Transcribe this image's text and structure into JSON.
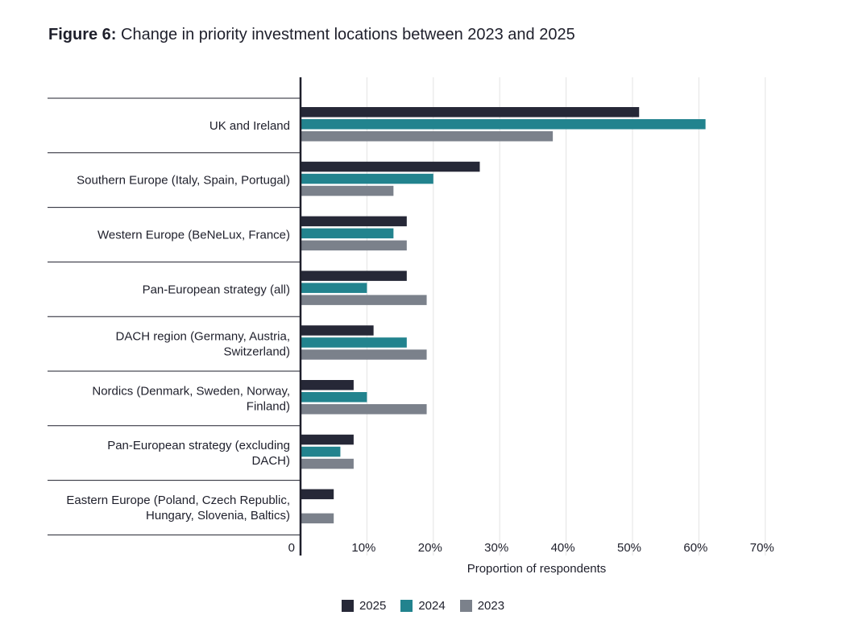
{
  "figure": {
    "label": "Figure 6:",
    "caption": "Change in priority investment locations between 2023 and 2025"
  },
  "chart_data": {
    "type": "bar",
    "orientation": "horizontal",
    "title": "Figure 6: Change in priority investment locations between 2023 and 2025",
    "xlabel": "Proportion of respondents",
    "ylabel": "",
    "xlim": [
      0,
      70
    ],
    "x_ticks": [
      0,
      10,
      20,
      30,
      40,
      50,
      60,
      70
    ],
    "x_tick_labels": [
      "0",
      "10%",
      "20%",
      "30%",
      "40%",
      "50%",
      "60%",
      "70%"
    ],
    "grid": true,
    "legend_position": "bottom-center",
    "categories": [
      [
        "UK and Ireland"
      ],
      [
        "Southern Europe (Italy, Spain, Portugal)"
      ],
      [
        "Western Europe (BeNeLux, France)"
      ],
      [
        "Pan-European strategy (all)"
      ],
      [
        "DACH region (Germany, Austria,",
        "Switzerland)"
      ],
      [
        "Nordics (Denmark, Sweden, Norway,",
        "Finland)"
      ],
      [
        "Pan-European strategy (excluding",
        "DACH)"
      ],
      [
        "Eastern Europe (Poland, Czech Republic,",
        "Hungary, Slovenia, Baltics)"
      ]
    ],
    "series": [
      {
        "name": "2025",
        "color": "#262837",
        "values": [
          51,
          27,
          16,
          16,
          11,
          8,
          8,
          5
        ]
      },
      {
        "name": "2024",
        "color": "#22838e",
        "values": [
          61,
          20,
          14,
          10,
          16,
          10,
          6,
          0
        ]
      },
      {
        "name": "2023",
        "color": "#7b818b",
        "values": [
          38,
          14,
          16,
          19,
          19,
          19,
          8,
          5
        ]
      }
    ]
  }
}
